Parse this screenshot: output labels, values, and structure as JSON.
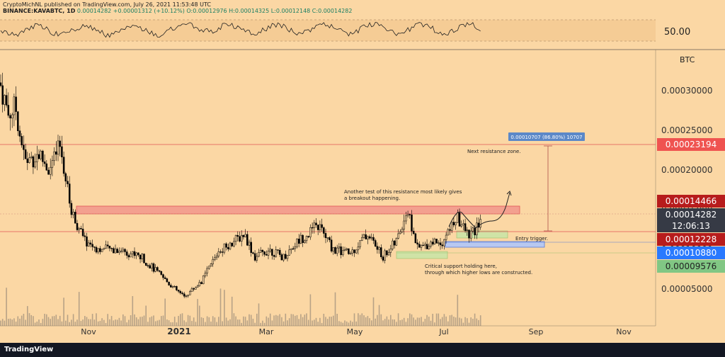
{
  "header": {
    "publisher_line": "CryptoMichNL published on TradingView.com, July 26, 2021 11:53:48 UTC",
    "symbol": "BINANCE:KAVABTC, 1D",
    "last": "0.00014282",
    "change": "+0.00001312 (+10.12%)",
    "ohlc": "O:0.00012976 H:0.00014325 L:0.00012148 C:0.00014282"
  },
  "footer": {
    "brand": "TradingView"
  },
  "colors": {
    "background": "#fbd7a4",
    "candle": "#000000",
    "red_line": "#e05555",
    "blue_line": "#5b7bd6",
    "resistance_zone": "#f3a08f",
    "green_zone": "#cfe3a6",
    "label_red": "#ef5350",
    "label_dark": "#363a45",
    "label_blue": "#2979ff",
    "label_green": "#81c784",
    "badge_blue": "#5b88c8"
  },
  "indicator": {
    "value_label": "50.00"
  },
  "chart_data": {
    "type": "candlestick",
    "title": "BINANCE:KAVABTC, 1D",
    "unit": "BTC",
    "y_tick_labels": [
      "0.00005000",
      "0.00010000",
      "0.00015000",
      "0.00020000",
      "0.00025000",
      "0.00030000"
    ],
    "x_tick_labels": [
      "Nov",
      "2021",
      "Mar",
      "May",
      "Jul",
      "Sep",
      "Nov"
    ],
    "ylim": [
      0.0,
      0.00034
    ],
    "price_labels": {
      "resistance_target": "0.00023194",
      "upper_resistance": "0.00014466",
      "last_price": "0.00014282",
      "countdown": "12:06:13",
      "support_line": "0.00012228",
      "entry_trigger": "0.00010880",
      "critical_support": "0.00009576"
    },
    "levels": [
      0.00023194,
      0.00014466,
      0.00014282,
      0.00012228,
      0.0001088,
      9.576e-05
    ],
    "measure_label": "0.00010707 (86.80%) 10707",
    "annotations": {
      "next_resistance": "Next resistance zone.",
      "resistance_test_1": "Another test of this resistance most likely gives",
      "resistance_test_2": "a breakout happening.",
      "entry": "Entry trigger.",
      "support_1": "Critical support holding here,",
      "support_2": "through which higher lows are constructed."
    },
    "indicator_ohlc_approx": [
      [
        0.00028,
        0.0003,
        0.00024,
        0.00026
      ],
      [
        0.00026,
        0.00027,
        0.0002,
        0.000215
      ],
      [
        0.000215,
        0.00023,
        0.000175,
        0.00019
      ],
      [
        0.00019,
        0.00021,
        0.00016,
        0.00018
      ],
      [
        0.00018,
        0.00023,
        0.00017,
        0.0002
      ],
      [
        0.0002,
        0.000205,
        0.00015,
        0.00016
      ],
      [
        0.00016,
        0.000165,
        0.00011,
        0.00012
      ],
      [
        0.00012,
        0.00013,
        8e-05,
        9.5e-05
      ],
      [
        9.5e-05,
        0.00011,
        7.5e-05,
        9e-05
      ],
      [
        9e-05,
        0.000105,
        7e-05,
        8e-05
      ],
      [
        8e-05,
        9e-05,
        6e-05,
        7e-05
      ],
      [
        7e-05,
        8e-05,
        4.5e-05,
        5e-05
      ],
      [
        5e-05,
        6e-05,
        4e-05,
        4.8e-05
      ],
      [
        4.8e-05,
        6.5e-05,
        4.5e-05,
        6e-05
      ],
      [
        6e-05,
        9e-05,
        5.8e-05,
        8.5e-05
      ],
      [
        8.5e-05,
        0.000115,
        8e-05,
        0.0001
      ],
      [
        0.0001,
        0.00011,
        8.5e-05,
        9e-05
      ],
      [
        9e-05,
        0.00012,
        8.5e-05,
        0.00011
      ],
      [
        0.00011,
        0.000125,
        9e-05,
        9.5e-05
      ],
      [
        9.5e-05,
        0.00011,
        8.5e-05,
        0.000105
      ],
      [
        0.000105,
        0.00012,
        9.5e-05,
        0.000115
      ],
      [
        0.000115,
        0.000125,
        9.5e-05,
        0.0001
      ],
      [
        0.0001,
        0.000115,
        9e-05,
        0.00011
      ],
      [
        0.00011,
        0.00012,
        8e-05,
        9e-05
      ],
      [
        9e-05,
        0.00015,
        8.5e-05,
        0.000135
      ],
      [
        0.000135,
        0.00014,
        9.5e-05,
        0.0001
      ],
      [
        0.0001,
        0.00011,
        9e-05,
        0.000105
      ],
      [
        0.000105,
        0.000135,
        0.0001,
        0.00013
      ],
      [
        0.00013,
        0.000145,
        0.00011,
        0.00012
      ],
      [
        0.00012,
        0.000143,
        0.000115,
        0.00014
      ]
    ]
  }
}
